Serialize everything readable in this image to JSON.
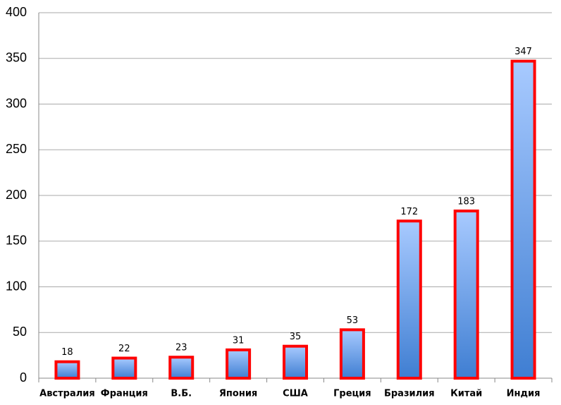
{
  "chart_data": {
    "type": "bar",
    "categories": [
      "Австралия",
      "Франция",
      "В.Б.",
      "Япония",
      "США",
      "Греция",
      "Бразилия",
      "Китай",
      "Индия"
    ],
    "values": [
      18,
      22,
      23,
      31,
      35,
      53,
      172,
      183,
      347
    ],
    "color": "#3f7ed2",
    "edgecolor": "#ff0000",
    "ylim": [
      0,
      400
    ],
    "yticks": [
      0,
      50,
      100,
      150,
      200,
      250,
      300,
      350,
      400
    ],
    "grid": true
  }
}
